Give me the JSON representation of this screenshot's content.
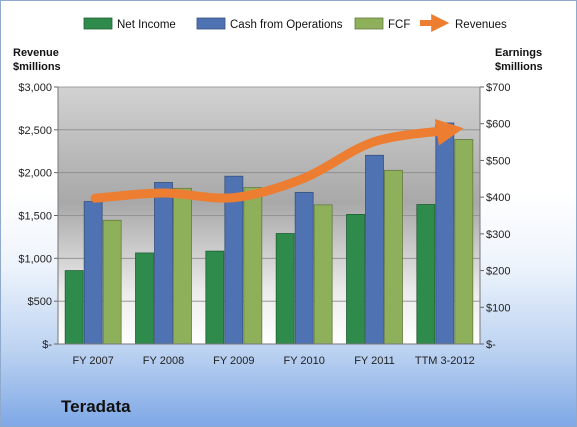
{
  "chart_data": {
    "type": "bar",
    "categories": [
      "FY 2007",
      "FY 2008",
      "FY 2009",
      "FY 2010",
      "FY 2011",
      "TTM 3-2012"
    ],
    "series": [
      {
        "name": "Net Income",
        "axis": "right",
        "kind": "bar",
        "color": "#2e8b4c",
        "values": [
          200,
          248,
          253,
          301,
          353,
          380
        ]
      },
      {
        "name": "Cash from Operations",
        "axis": "right",
        "kind": "bar",
        "color": "#4f73b2",
        "values": [
          388,
          440,
          457,
          413,
          514,
          602
        ]
      },
      {
        "name": "FCF",
        "axis": "right",
        "kind": "bar",
        "color": "#8fb05a",
        "values": [
          337,
          424,
          426,
          379,
          473,
          557
        ]
      },
      {
        "name": "Revenues",
        "axis": "left",
        "kind": "line",
        "color": "#ed7d31",
        "values": [
          1702,
          1762,
          1709,
          1936,
          2362,
          2500
        ]
      }
    ],
    "left_axis": {
      "label": [
        "Revenue",
        "$millions"
      ],
      "range": [
        0,
        3000
      ],
      "ticks": [
        {
          "value": 3000,
          "label": "$3,000"
        },
        {
          "value": 2500,
          "label": "$2,500"
        },
        {
          "value": 2000,
          "label": "$2,000"
        },
        {
          "value": 1500,
          "label": "$1,500"
        },
        {
          "value": 1000,
          "label": "$1,000"
        },
        {
          "value": 500,
          "label": "$500"
        },
        {
          "value": 0,
          "label": "$-"
        }
      ]
    },
    "right_axis": {
      "label": [
        "Earnings",
        "$millions"
      ],
      "range": [
        0,
        700
      ],
      "ticks": [
        {
          "value": 700,
          "label": "$700"
        },
        {
          "value": 600,
          "label": "$600"
        },
        {
          "value": 500,
          "label": "$500"
        },
        {
          "value": 400,
          "label": "$400"
        },
        {
          "value": 300,
          "label": "$300"
        },
        {
          "value": 200,
          "label": "$200"
        },
        {
          "value": 100,
          "label": "$100"
        },
        {
          "value": 0,
          "label": "$-"
        }
      ]
    },
    "grid": true,
    "legend_position": "top"
  },
  "company": "Teradata"
}
